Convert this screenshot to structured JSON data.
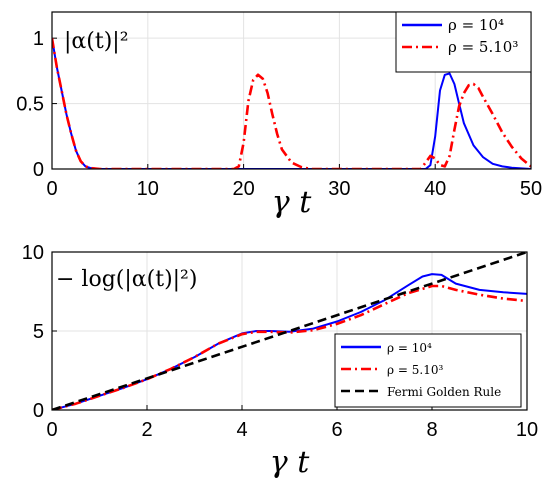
{
  "chart_data": [
    {
      "type": "line",
      "title": "|α(t)|²",
      "xlabel": "γ t",
      "ylabel": "",
      "xlim": [
        0,
        50
      ],
      "ylim": [
        0,
        1.2
      ],
      "xticks": [
        "0",
        "10",
        "20",
        "30",
        "40",
        "50"
      ],
      "yticks": [
        "0",
        "0.5",
        "1"
      ],
      "grid": true,
      "legend_position": "top-right",
      "series": [
        {
          "name": "ρ = 10⁴",
          "color": "#0000ff",
          "style": "solid",
          "x": [
            0,
            0.5,
            1,
            1.5,
            2,
            2.5,
            3,
            3.5,
            4,
            5,
            10,
            20,
            30,
            39,
            39.5,
            40,
            40.5,
            41,
            41.5,
            42,
            42.5,
            43,
            44,
            45,
            46,
            47,
            48,
            50
          ],
          "y": [
            1.0,
            0.78,
            0.6,
            0.42,
            0.27,
            0.14,
            0.06,
            0.02,
            0.008,
            0.0,
            0.0,
            0.0,
            0.0,
            0.0,
            0.03,
            0.25,
            0.6,
            0.72,
            0.73,
            0.65,
            0.5,
            0.35,
            0.18,
            0.09,
            0.04,
            0.02,
            0.01,
            0.0
          ]
        },
        {
          "name": "ρ = 5.10³",
          "color": "#ff0000",
          "style": "dashdot",
          "x": [
            0,
            0.5,
            1,
            1.5,
            2,
            2.5,
            3,
            3.5,
            4,
            5,
            10,
            19,
            19.5,
            20,
            20.5,
            21,
            21.5,
            22,
            22.5,
            23,
            23.5,
            24,
            25,
            26,
            27,
            30,
            35,
            38.5,
            39,
            39.5,
            40,
            40.5,
            41,
            41.5,
            42,
            42.5,
            43,
            43.5,
            44,
            44.5,
            45,
            46,
            47,
            48,
            49,
            50
          ],
          "y": [
            1.0,
            0.78,
            0.6,
            0.42,
            0.27,
            0.14,
            0.06,
            0.02,
            0.008,
            0.0,
            0.0,
            0.0,
            0.02,
            0.2,
            0.52,
            0.68,
            0.72,
            0.69,
            0.58,
            0.42,
            0.27,
            0.15,
            0.05,
            0.015,
            0.0,
            0.0,
            0.0,
            0.0,
            0.05,
            0.1,
            0.08,
            0.03,
            0.02,
            0.1,
            0.3,
            0.48,
            0.58,
            0.64,
            0.65,
            0.62,
            0.55,
            0.42,
            0.28,
            0.17,
            0.08,
            0.02
          ]
        }
      ]
    },
    {
      "type": "line",
      "title": "− log(|α(t)|²)",
      "xlabel": "γ t",
      "ylabel": "",
      "xlim": [
        0,
        10
      ],
      "ylim": [
        0,
        10
      ],
      "xticks": [
        "0",
        "2",
        "4",
        "6",
        "8",
        "10"
      ],
      "yticks": [
        "0",
        "5",
        "10"
      ],
      "grid": true,
      "legend_position": "bottom-right",
      "series": [
        {
          "name": "ρ = 10⁴",
          "color": "#0000ff",
          "style": "solid",
          "x": [
            0,
            0.5,
            1,
            1.5,
            2,
            2.5,
            3,
            3.5,
            4,
            4.3,
            4.6,
            5,
            5.5,
            6,
            6.5,
            7,
            7.5,
            7.8,
            8,
            8.2,
            8.5,
            9,
            9.5,
            10
          ],
          "y": [
            0,
            0.4,
            0.9,
            1.4,
            1.95,
            2.6,
            3.35,
            4.2,
            4.85,
            5.0,
            5.0,
            4.95,
            5.15,
            5.6,
            6.2,
            6.95,
            7.9,
            8.45,
            8.6,
            8.55,
            8.0,
            7.6,
            7.45,
            7.35
          ]
        },
        {
          "name": "ρ = 5.10³",
          "color": "#ff0000",
          "style": "dashdot",
          "x": [
            0,
            0.5,
            1,
            1.5,
            2,
            2.5,
            3,
            3.5,
            4,
            4.3,
            4.6,
            5,
            5.5,
            6,
            6.5,
            7,
            7.5,
            8,
            8.2,
            8.5,
            9,
            9.5,
            10
          ],
          "y": [
            0,
            0.4,
            0.9,
            1.4,
            1.95,
            2.6,
            3.35,
            4.2,
            4.8,
            4.95,
            4.95,
            4.9,
            5.05,
            5.45,
            6.0,
            6.7,
            7.4,
            7.85,
            7.85,
            7.6,
            7.3,
            7.05,
            6.9
          ]
        },
        {
          "name": "Fermi Golden Rule",
          "color": "#000000",
          "style": "dashed",
          "x": [
            0,
            10
          ],
          "y": [
            0,
            10
          ]
        }
      ]
    }
  ]
}
